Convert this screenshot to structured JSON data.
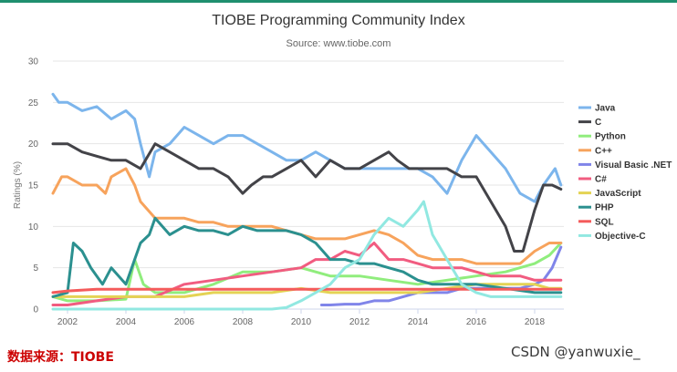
{
  "chart_data": {
    "type": "line",
    "title": "TIOBE Programming Community Index",
    "subtitle": "Source: www.tiobe.com",
    "ylabel": "Ratings (%)",
    "xlabel": "",
    "xlim": [
      2001.5,
      2019.0
    ],
    "ylim": [
      0,
      30
    ],
    "xticks": [
      "2002",
      "2004",
      "2006",
      "2008",
      "2010",
      "2012",
      "2014",
      "2016",
      "2018"
    ],
    "yticks": [
      "0",
      "5",
      "10",
      "15",
      "20",
      "25",
      "30"
    ],
    "grid": true,
    "legend_position": "right",
    "series": [
      {
        "name": "Java",
        "color": "#7cb5ec",
        "x": [
          2001.5,
          2001.7,
          2002,
          2002.5,
          2003,
          2003.5,
          2004,
          2004.3,
          2004.5,
          2004.8,
          2005,
          2005.5,
          2006,
          2006.5,
          2007,
          2007.5,
          2008,
          2008.5,
          2009,
          2009.5,
          2010,
          2010.5,
          2011,
          2011.5,
          2012,
          2012.5,
          2013,
          2013.5,
          2014,
          2014.5,
          2015,
          2015.5,
          2016,
          2016.5,
          2017,
          2017.5,
          2018,
          2018.3,
          2018.7,
          2018.9
        ],
        "y": [
          26,
          25,
          25,
          24,
          24.5,
          23,
          24,
          23,
          20,
          16,
          19,
          20,
          22,
          21,
          20,
          21,
          21,
          20,
          19,
          18,
          18,
          19,
          18,
          17,
          17,
          17,
          17,
          17,
          17,
          16,
          14,
          18,
          21,
          19,
          17,
          14,
          13,
          15,
          17,
          15
        ]
      },
      {
        "name": "C",
        "color": "#434348",
        "x": [
          2001.5,
          2002,
          2002.5,
          2003,
          2003.5,
          2004,
          2004.5,
          2005,
          2005.5,
          2006,
          2006.5,
          2007,
          2007.5,
          2008,
          2008.3,
          2008.7,
          2009,
          2009.5,
          2010,
          2010.5,
          2011,
          2011.5,
          2012,
          2012.5,
          2013,
          2013.3,
          2013.7,
          2014,
          2014.5,
          2015,
          2015.5,
          2016,
          2016.5,
          2017,
          2017.3,
          2017.6,
          2018,
          2018.3,
          2018.6,
          2018.9
        ],
        "y": [
          20,
          20,
          19,
          18.5,
          18,
          18,
          17,
          20,
          19,
          18,
          17,
          17,
          16,
          14,
          15,
          16,
          16,
          17,
          18,
          16,
          18,
          17,
          17,
          18,
          19,
          18,
          17,
          17,
          17,
          17,
          16,
          16,
          13,
          10,
          7,
          7,
          12,
          15,
          15,
          14.5
        ]
      },
      {
        "name": "Python",
        "color": "#90ed7d",
        "x": [
          2001.5,
          2002,
          2003,
          2004,
          2004.3,
          2004.6,
          2005,
          2006,
          2007,
          2008,
          2009,
          2010,
          2011,
          2012,
          2013,
          2014,
          2015,
          2016,
          2017,
          2018,
          2018.5,
          2018.9
        ],
        "y": [
          1.5,
          1,
          1,
          1.2,
          6,
          3,
          2,
          2,
          3,
          4.5,
          4.5,
          5,
          4,
          4,
          3.5,
          3,
          3.5,
          4,
          4.5,
          5.5,
          6.5,
          8
        ]
      },
      {
        "name": "C++",
        "color": "#f7a35c",
        "x": [
          2001.5,
          2001.8,
          2002,
          2002.5,
          2003,
          2003.3,
          2003.5,
          2004,
          2004.3,
          2004.5,
          2005,
          2005.5,
          2006,
          2006.5,
          2007,
          2007.5,
          2008,
          2008.5,
          2009,
          2009.5,
          2010,
          2010.5,
          2011,
          2011.5,
          2012,
          2012.5,
          2013,
          2013.5,
          2014,
          2014.5,
          2015,
          2015.5,
          2016,
          2016.5,
          2017,
          2017.5,
          2018,
          2018.5,
          2018.9
        ],
        "y": [
          14,
          16,
          16,
          15,
          15,
          14,
          16,
          17,
          15,
          13,
          11,
          11,
          11,
          10.5,
          10.5,
          10,
          10,
          10,
          10,
          9.5,
          9,
          8.5,
          8.5,
          8.5,
          9,
          9.5,
          9,
          8,
          6.5,
          6,
          6,
          6,
          5.5,
          5.5,
          5.5,
          5.5,
          7,
          8,
          8
        ]
      },
      {
        "name": "Visual Basic .NET",
        "color": "#8085e9",
        "x": [
          2010.7,
          2011,
          2011.5,
          2012,
          2012.5,
          2013,
          2013.5,
          2014,
          2014.5,
          2015,
          2015.5,
          2016,
          2016.5,
          2017,
          2017.5,
          2018,
          2018.3,
          2018.6,
          2018.9
        ],
        "y": [
          0.5,
          0.5,
          0.6,
          0.6,
          1,
          1,
          1.5,
          2,
          2,
          2,
          2.5,
          2.5,
          2.5,
          2.5,
          2.5,
          3,
          3.5,
          5,
          7.5
        ]
      },
      {
        "name": "C#",
        "color": "#f15c80",
        "x": [
          2001.5,
          2002,
          2003,
          2004,
          2005,
          2006,
          2007,
          2008,
          2009,
          2010,
          2010.5,
          2011,
          2011.5,
          2012,
          2012.5,
          2013,
          2013.5,
          2014,
          2014.5,
          2015,
          2015.5,
          2016,
          2016.5,
          2017,
          2017.5,
          2018,
          2018.5,
          2018.9
        ],
        "y": [
          0.5,
          0.5,
          1,
          1.5,
          1.5,
          3,
          3.5,
          4,
          4.5,
          5,
          6,
          6,
          7,
          6.5,
          8,
          6,
          6,
          5.5,
          5,
          5,
          5,
          4.5,
          4,
          4,
          4,
          3.5,
          3.5,
          3.5
        ]
      },
      {
        "name": "JavaScript",
        "color": "#e4d354",
        "x": [
          2001.5,
          2002,
          2003,
          2004,
          2005,
          2006,
          2007,
          2008,
          2009,
          2010,
          2011,
          2012,
          2013,
          2014,
          2015,
          2016,
          2017,
          2017.5,
          2018,
          2018.5,
          2018.9
        ],
        "y": [
          1.5,
          1.5,
          1.5,
          1.5,
          1.5,
          1.5,
          2,
          2,
          2,
          2.5,
          2,
          2,
          2,
          2,
          2.5,
          3,
          3,
          3,
          3,
          2.5,
          2.5
        ]
      },
      {
        "name": "PHP",
        "color": "#2b908f",
        "x": [
          2001.5,
          2002,
          2002.2,
          2002.5,
          2002.8,
          2003.2,
          2003.5,
          2004,
          2004.5,
          2004.8,
          2005,
          2005.5,
          2006,
          2006.5,
          2007,
          2007.5,
          2008,
          2008.5,
          2009,
          2009.5,
          2010,
          2010.5,
          2011,
          2011.5,
          2012,
          2012.5,
          2013,
          2013.5,
          2014,
          2014.5,
          2015,
          2015.5,
          2016,
          2017,
          2018,
          2018.5,
          2018.9
        ],
        "y": [
          1.5,
          2,
          8,
          7,
          5,
          3,
          5,
          3,
          8,
          9,
          11,
          9,
          10,
          9.5,
          9.5,
          9,
          10,
          9.5,
          9.5,
          9.5,
          9,
          8,
          6,
          6,
          5.5,
          5.5,
          5,
          4.5,
          3.5,
          3,
          3,
          3,
          3,
          2.5,
          2,
          2,
          2
        ]
      },
      {
        "name": "SQL",
        "color": "#f45b5b",
        "x": [
          2001.5,
          2002,
          2003,
          2004,
          2005,
          2006,
          2007,
          2008,
          2009,
          2010,
          2011,
          2012,
          2013,
          2014,
          2015,
          2016,
          2017,
          2018,
          2018.9
        ],
        "y": [
          2,
          2.2,
          2.4,
          2.4,
          2.4,
          2.4,
          2.4,
          2.4,
          2.4,
          2.4,
          2.4,
          2.4,
          2.4,
          2.4,
          2.4,
          2.4,
          2.4,
          2.4,
          2.4
        ]
      },
      {
        "name": "Objective-C",
        "color": "#91e8e1",
        "x": [
          2001.5,
          2002,
          2004,
          2006,
          2008,
          2009,
          2009.5,
          2010,
          2010.5,
          2011,
          2011.5,
          2012,
          2012.5,
          2013,
          2013.5,
          2014,
          2014.2,
          2014.5,
          2015,
          2015.5,
          2016,
          2016.5,
          2017,
          2018,
          2018.9
        ],
        "y": [
          0,
          0,
          0,
          0,
          0,
          0,
          0.2,
          1,
          2,
          3,
          5,
          6,
          9,
          11,
          10,
          12,
          13,
          9,
          6,
          3,
          2,
          1.5,
          1.5,
          1.5,
          1.5
        ]
      }
    ]
  },
  "footer": {
    "source_note": "数据来源：TIOBE",
    "watermark": "CSDN @yanwuxie_"
  }
}
